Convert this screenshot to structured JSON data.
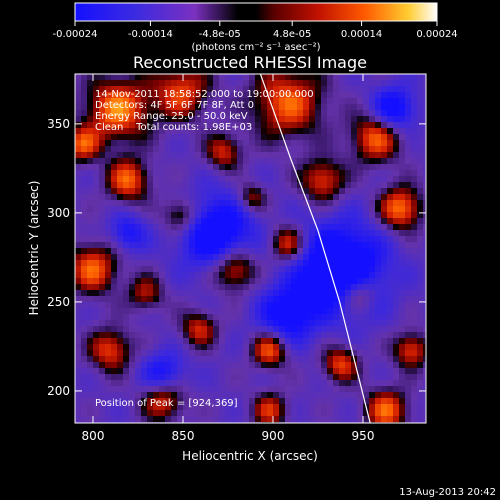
{
  "chart_data": {
    "type": "heatmap",
    "title": "Reconstructed RHESSI Image",
    "xlabel": "Heliocentric X (arcsec)",
    "ylabel": "Heliocentric Y (arcsec)",
    "xlim": [
      790,
      985
    ],
    "ylim": [
      182,
      378
    ],
    "x_ticks": [
      "800",
      "850",
      "900",
      "950"
    ],
    "y_ticks": [
      "200",
      "250",
      "300",
      "350"
    ],
    "colorbar": {
      "ticks": [
        "-0.00024",
        "-0.00014",
        "-4.8e-05",
        "4.8e-05",
        "0.00014",
        "0.00024"
      ],
      "units": "(photons cm⁻² s⁻¹ asec⁻²)",
      "range": [
        -0.00024,
        0.00024
      ]
    },
    "annotations": {
      "time": "14-Nov-2011 18:58:52.000 to 19:00:00.000",
      "detectors": "Detectors: 4F 5F 6F 7F 8F, Att 0",
      "energy": "Energy Range: 25.0 - 50.0 keV",
      "clean": "Clean    Total counts: 1.98E+03",
      "peak": "Position of Peak = [924,369]"
    },
    "limb_arc": {
      "x": [
        893,
        910,
        925,
        937,
        947,
        954
      ],
      "y": [
        378,
        330,
        290,
        250,
        210,
        182
      ]
    },
    "peak": [
      924,
      369
    ],
    "footer_date": "13-Aug-2013 20:42",
    "colors": {
      "background": "#000000",
      "text": "#ffffff"
    }
  }
}
